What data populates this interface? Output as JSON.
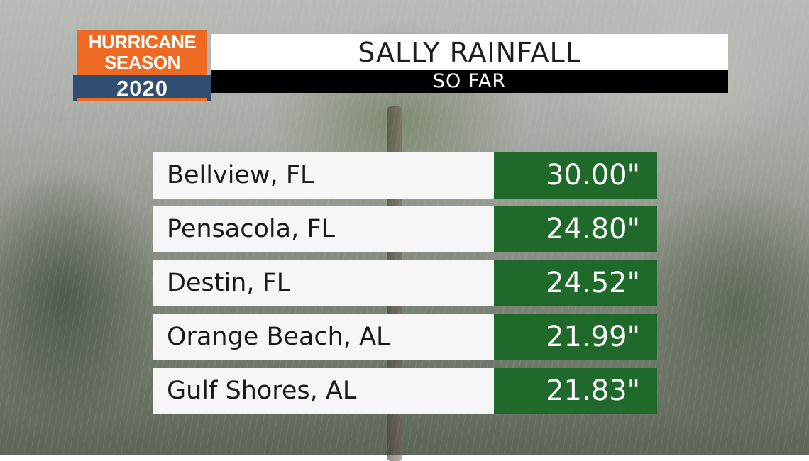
{
  "logo": {
    "line1": "HURRICANE",
    "line2": "SEASON",
    "year": "2020",
    "colors": {
      "orange": "#ee6a22",
      "blue": "#2f4e72"
    }
  },
  "header": {
    "title": "SALLY RAINFALL",
    "subtitle": "SO FAR"
  },
  "rainfall": [
    {
      "location": "Bellview, FL",
      "amount": "30.00\""
    },
    {
      "location": "Pensacola, FL",
      "amount": "24.80\""
    },
    {
      "location": "Destin, FL",
      "amount": "24.52\""
    },
    {
      "location": "Orange Beach, AL",
      "amount": "21.99\""
    },
    {
      "location": "Gulf Shores, AL",
      "amount": "21.83\""
    }
  ],
  "colors": {
    "value_bg": "#1f6a2a",
    "name_bg": "#f6f6f6"
  }
}
